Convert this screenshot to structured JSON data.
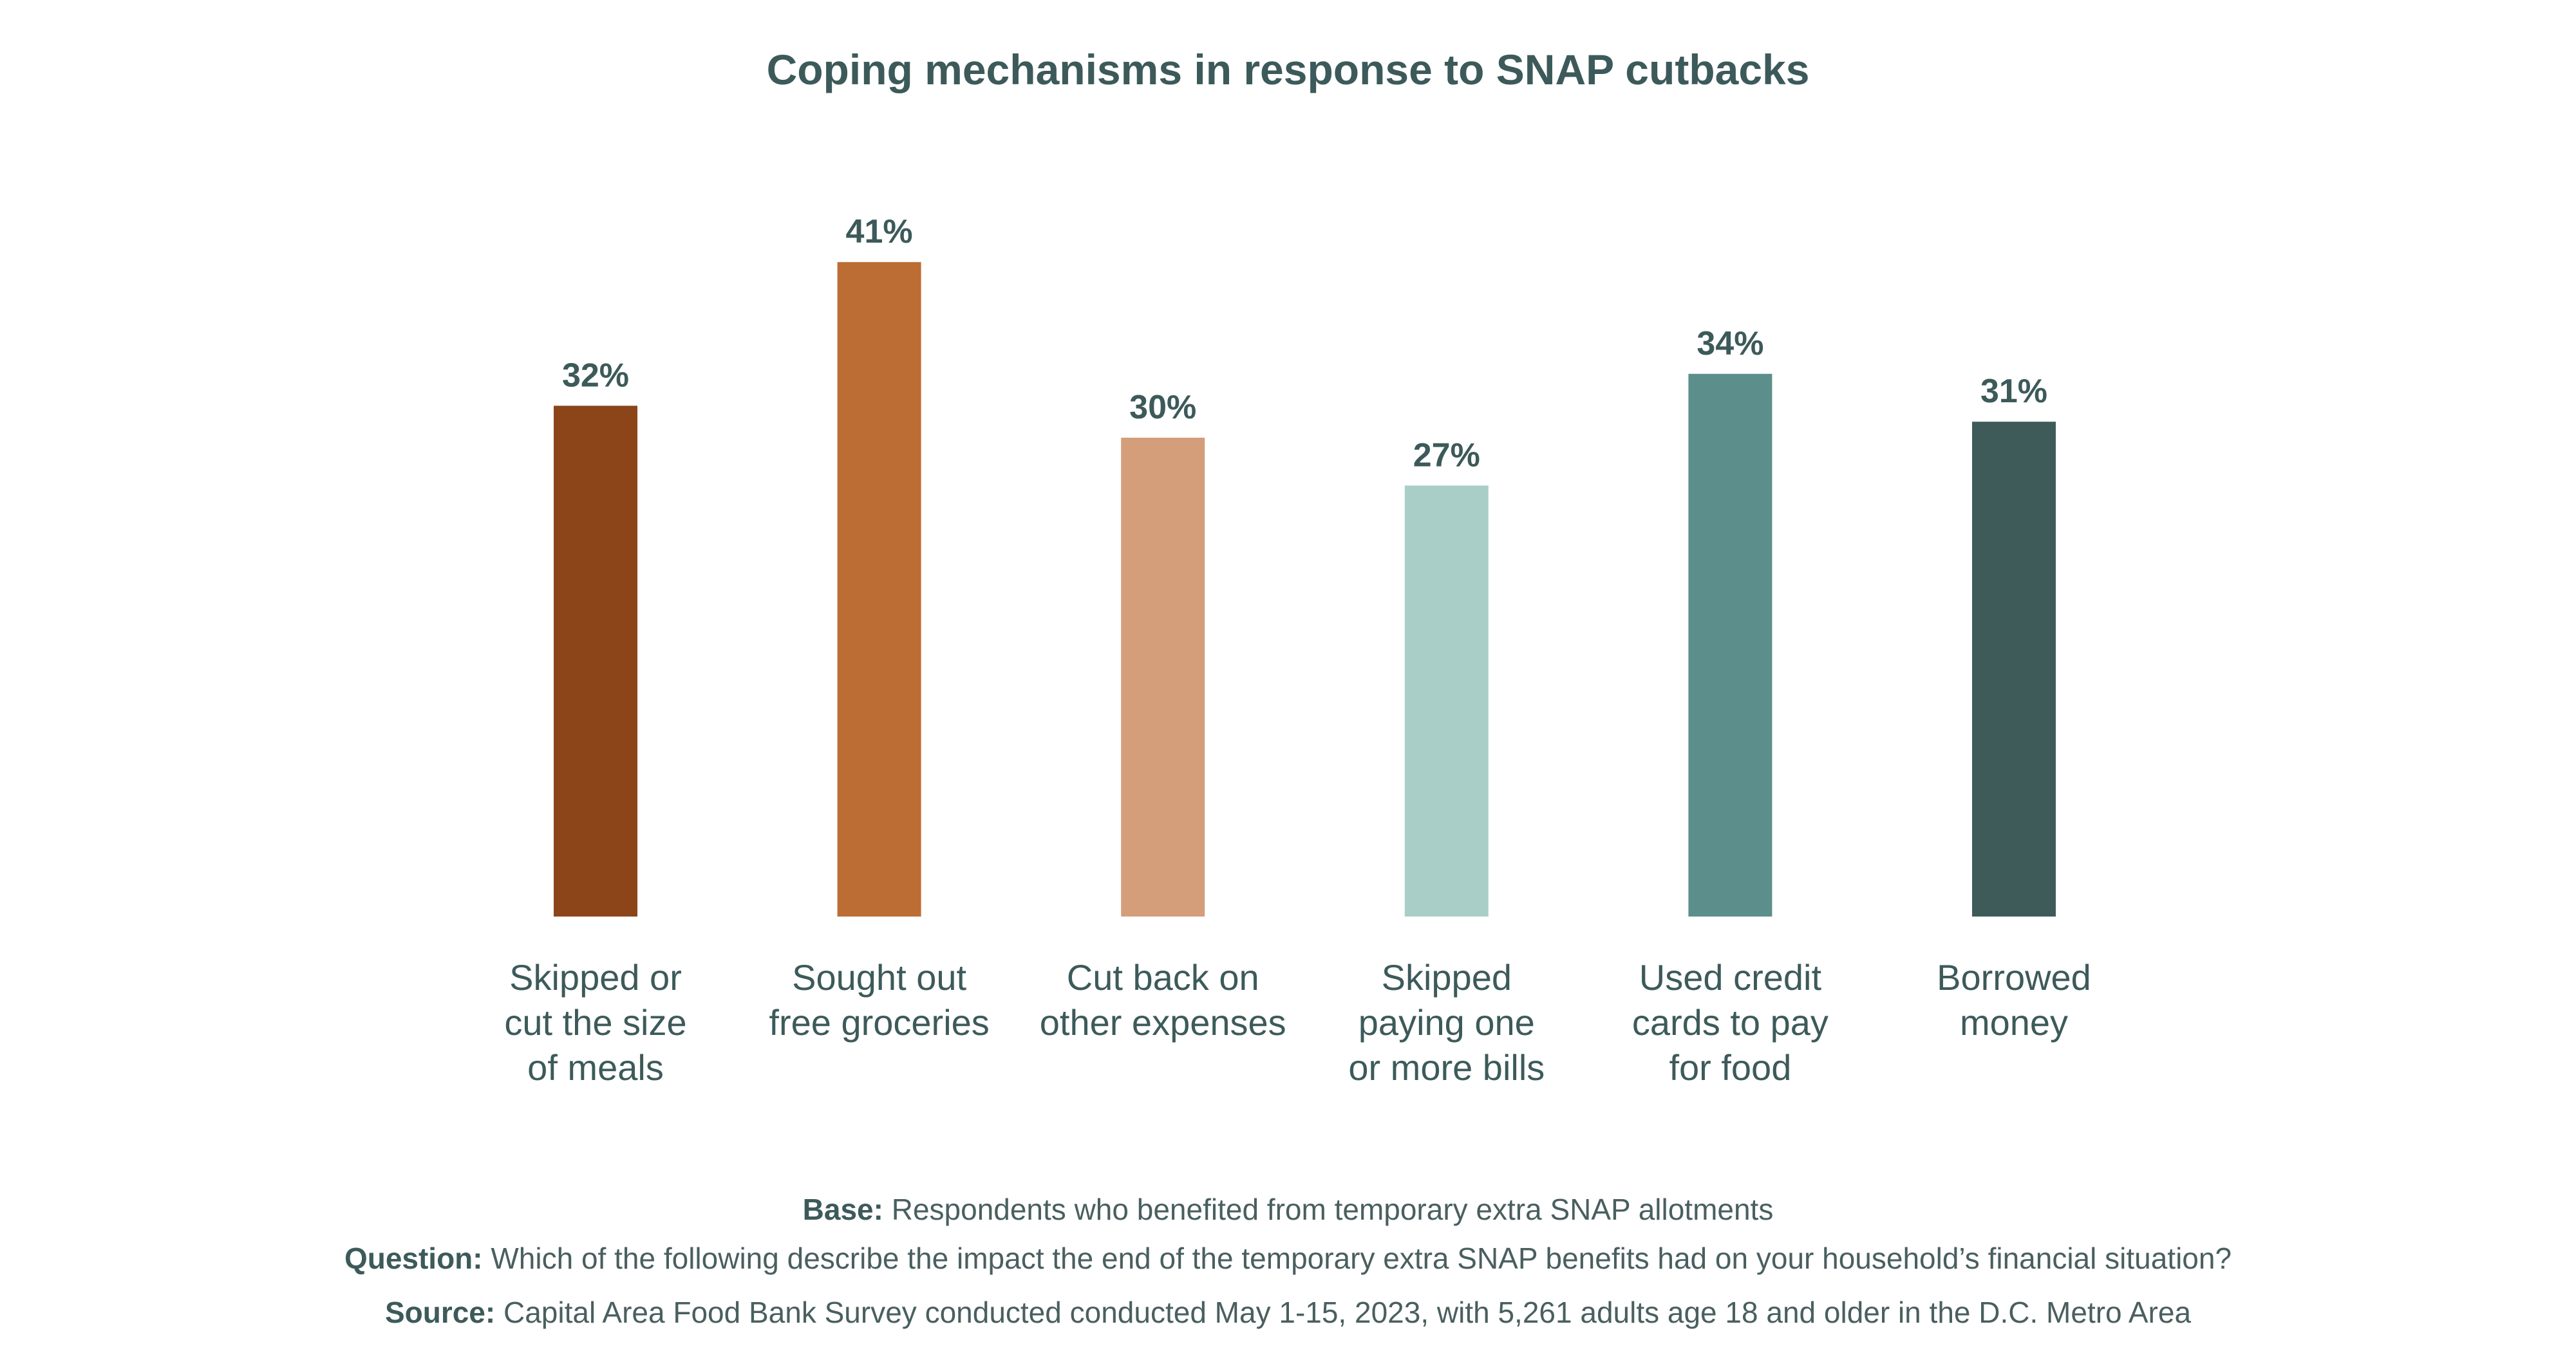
{
  "chart_data": {
    "type": "bar",
    "title": "Coping mechanisms in response to SNAP cutbacks",
    "xlabel": "",
    "ylabel": "",
    "ylim": [
      0,
      45
    ],
    "grid": false,
    "categories": [
      "Skipped or cut the size of meals",
      "Sought out free groceries",
      "Cut back on other expenses",
      "Skipped paying one or more bills",
      "Used credit cards to pay for food",
      "Borrowed money"
    ],
    "category_lines": [
      [
        "Skipped or",
        "cut the size",
        "of meals"
      ],
      [
        "Sought out",
        "free groceries"
      ],
      [
        "Cut back on",
        "other expenses"
      ],
      [
        "Skipped",
        "paying one",
        "or more bills"
      ],
      [
        "Used credit",
        "cards to pay",
        "for food"
      ],
      [
        "Borrowed",
        "money"
      ]
    ],
    "values": [
      32,
      41,
      30,
      27,
      34,
      31
    ],
    "data_labels": [
      "32%",
      "41%",
      "30%",
      "27%",
      "34%",
      "31%"
    ],
    "colors": [
      "#8b4519",
      "#bc6d33",
      "#d49e7a",
      "#a9cec7",
      "#5c8f8c",
      "#3e5b5a"
    ]
  },
  "footnotes": {
    "base_label": "Base:",
    "base_text": "Respondents who benefited from temporary extra SNAP allotments",
    "question_label": "Question:",
    "question_text": "Which of the following describe the impact the end of the temporary extra SNAP benefits had on your household’s financial situation?",
    "source_label": "Source:",
    "source_text": "Capital Area Food Bank Survey conducted conducted May 1-15, 2023, with 5,261 adults age 18 and older in the D.C. Metro Area"
  }
}
